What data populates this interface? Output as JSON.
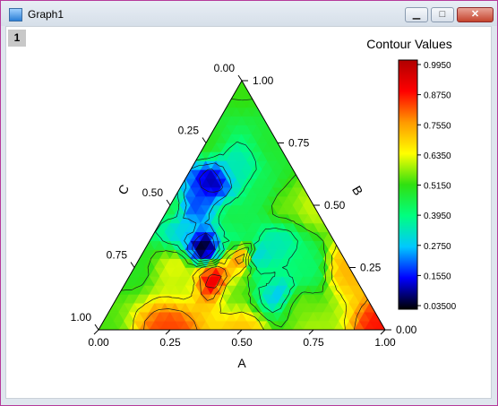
{
  "window": {
    "title": "Graph1",
    "layer_label": "1",
    "min_glyph": "▁",
    "max_glyph": "□",
    "close_glyph": "✕"
  },
  "chart_data": {
    "type": "ternary-contour",
    "axes": {
      "A": {
        "label": "A",
        "ticks": [
          "0.00",
          "0.25",
          "0.50",
          "0.75",
          "1.00"
        ]
      },
      "B": {
        "label": "B",
        "ticks": [
          "0.00",
          "0.25",
          "0.50",
          "0.75",
          "1.00"
        ]
      },
      "C": {
        "label": "C",
        "ticks": [
          "0.00",
          "0.25",
          "0.50",
          "0.75",
          "1.00"
        ]
      }
    },
    "colorbar": {
      "title": "Contour Values",
      "ticks": [
        "0.9950",
        "0.8750",
        "0.7550",
        "0.6350",
        "0.5150",
        "0.3950",
        "0.2750",
        "0.1550",
        "0.03500"
      ],
      "range": [
        0.035,
        0.995
      ],
      "colors": [
        "#000000",
        "#0000ff",
        "#00c8ff",
        "#00ff80",
        "#30e010",
        "#ffff00",
        "#ff9900",
        "#ff0000",
        "#b00000"
      ]
    },
    "points": [
      {
        "a": 0.0,
        "b": 0.0,
        "c": 1.0,
        "v": 0.53
      },
      {
        "a": 0.0,
        "b": 0.25,
        "c": 0.75,
        "v": 0.5
      },
      {
        "a": 0.0,
        "b": 0.5,
        "c": 0.5,
        "v": 0.46
      },
      {
        "a": 0.0,
        "b": 0.75,
        "c": 0.25,
        "v": 0.5
      },
      {
        "a": 0.0,
        "b": 1.0,
        "c": 0.0,
        "v": 0.52
      },
      {
        "a": 0.25,
        "b": 0.0,
        "c": 0.75,
        "v": 0.82
      },
      {
        "a": 0.5,
        "b": 0.0,
        "c": 0.5,
        "v": 0.7
      },
      {
        "a": 0.75,
        "b": 0.0,
        "c": 0.25,
        "v": 0.58
      },
      {
        "a": 1.0,
        "b": 0.0,
        "c": 0.0,
        "v": 0.86
      },
      {
        "a": 0.75,
        "b": 0.25,
        "c": 0.0,
        "v": 0.72
      },
      {
        "a": 0.5,
        "b": 0.5,
        "c": 0.0,
        "v": 0.6
      },
      {
        "a": 0.25,
        "b": 0.75,
        "c": 0.0,
        "v": 0.48
      },
      {
        "a": 0.1,
        "b": 0.6,
        "c": 0.3,
        "v": 0.12
      },
      {
        "a": 0.08,
        "b": 0.5,
        "c": 0.42,
        "v": 0.2
      },
      {
        "a": 0.1,
        "b": 0.4,
        "c": 0.5,
        "v": 0.3
      },
      {
        "a": 0.15,
        "b": 0.65,
        "c": 0.2,
        "v": 0.35
      },
      {
        "a": 0.2,
        "b": 0.33,
        "c": 0.47,
        "v": 0.05
      },
      {
        "a": 0.3,
        "b": 0.2,
        "c": 0.5,
        "v": 0.9
      },
      {
        "a": 0.4,
        "b": 0.15,
        "c": 0.45,
        "v": 0.55
      },
      {
        "a": 0.3,
        "b": 0.35,
        "c": 0.35,
        "v": 0.4
      },
      {
        "a": 0.35,
        "b": 0.3,
        "c": 0.35,
        "v": 0.82
      },
      {
        "a": 0.25,
        "b": 0.45,
        "c": 0.3,
        "v": 0.45
      },
      {
        "a": 0.4,
        "b": 0.3,
        "c": 0.3,
        "v": 0.3
      },
      {
        "a": 0.5,
        "b": 0.2,
        "c": 0.3,
        "v": 0.4
      },
      {
        "a": 0.55,
        "b": 0.15,
        "c": 0.3,
        "v": 0.28
      },
      {
        "a": 0.45,
        "b": 0.35,
        "c": 0.2,
        "v": 0.35
      },
      {
        "a": 0.6,
        "b": 0.25,
        "c": 0.15,
        "v": 0.42
      },
      {
        "a": 0.3,
        "b": 0.55,
        "c": 0.15,
        "v": 0.45
      },
      {
        "a": 0.2,
        "b": 0.2,
        "c": 0.6,
        "v": 0.6
      },
      {
        "a": 0.65,
        "b": 0.1,
        "c": 0.25,
        "v": 0.55
      },
      {
        "a": 0.4,
        "b": 0.5,
        "c": 0.1,
        "v": 0.55
      },
      {
        "a": 0.15,
        "b": 0.25,
        "c": 0.6,
        "v": 0.62
      }
    ]
  }
}
